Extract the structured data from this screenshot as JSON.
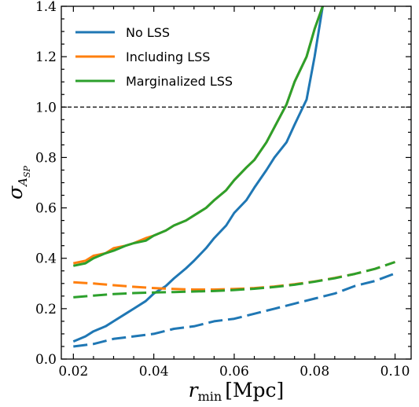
{
  "chart_data": {
    "type": "line",
    "xlabel_main": "r",
    "xlabel_sub": "min",
    "xlabel_unit": "[Mpc]",
    "ylabel_main": "σ",
    "ylabel_sub": "A",
    "ylabel_subsub": "SP",
    "xlim": [
      0.017,
      0.104
    ],
    "ylim": [
      0.0,
      1.4
    ],
    "xticks": [
      0.02,
      0.04,
      0.06,
      0.08,
      0.1
    ],
    "xtick_labels": [
      "0.02",
      "0.04",
      "0.06",
      "0.08",
      "0.10"
    ],
    "yticks": [
      0.0,
      0.2,
      0.4,
      0.6,
      0.8,
      1.0,
      1.2,
      1.4
    ],
    "ytick_labels": [
      "0.0",
      "0.2",
      "0.4",
      "0.6",
      "0.8",
      "1.0",
      "1.2",
      "1.4"
    ],
    "reference_line": {
      "y": 1.0,
      "style": "dashed",
      "color": "#000000"
    },
    "legend": {
      "placement": "top-left",
      "frame": false
    },
    "series": [
      {
        "name": "No LSS",
        "color": "#1f77b4",
        "style": "solid",
        "in_legend": true,
        "x": [
          0.02,
          0.023,
          0.025,
          0.028,
          0.03,
          0.033,
          0.035,
          0.038,
          0.04,
          0.043,
          0.045,
          0.048,
          0.05,
          0.053,
          0.055,
          0.058,
          0.06,
          0.063,
          0.065,
          0.068,
          0.07,
          0.073,
          0.075,
          0.078,
          0.08,
          0.082
        ],
        "y": [
          0.07,
          0.09,
          0.11,
          0.13,
          0.15,
          0.18,
          0.2,
          0.23,
          0.26,
          0.29,
          0.32,
          0.36,
          0.39,
          0.44,
          0.48,
          0.53,
          0.58,
          0.63,
          0.68,
          0.75,
          0.8,
          0.86,
          0.93,
          1.03,
          1.2,
          1.4
        ]
      },
      {
        "name": "Including LSS",
        "color": "#ff7f0e",
        "style": "solid",
        "in_legend": true,
        "x": [
          0.02,
          0.023,
          0.025,
          0.028,
          0.03,
          0.033,
          0.035,
          0.038,
          0.04,
          0.043,
          0.045,
          0.048,
          0.05,
          0.053,
          0.055,
          0.058,
          0.06,
          0.063,
          0.065,
          0.068,
          0.07,
          0.073,
          0.075,
          0.078,
          0.08,
          0.082
        ],
        "y": [
          0.38,
          0.39,
          0.41,
          0.42,
          0.44,
          0.45,
          0.46,
          0.48,
          0.49,
          0.51,
          0.53,
          0.55,
          0.57,
          0.6,
          0.63,
          0.67,
          0.71,
          0.76,
          0.79,
          0.86,
          0.92,
          1.01,
          1.1,
          1.2,
          1.31,
          1.4
        ]
      },
      {
        "name": "Marginalized LSS",
        "color": "#2ca02c",
        "style": "solid",
        "in_legend": true,
        "x": [
          0.02,
          0.023,
          0.025,
          0.028,
          0.03,
          0.033,
          0.035,
          0.038,
          0.04,
          0.043,
          0.045,
          0.048,
          0.05,
          0.053,
          0.055,
          0.058,
          0.06,
          0.063,
          0.065,
          0.068,
          0.07,
          0.073,
          0.075,
          0.078,
          0.08,
          0.082
        ],
        "y": [
          0.37,
          0.38,
          0.4,
          0.42,
          0.43,
          0.45,
          0.46,
          0.47,
          0.49,
          0.51,
          0.53,
          0.55,
          0.57,
          0.6,
          0.63,
          0.67,
          0.71,
          0.76,
          0.79,
          0.86,
          0.92,
          1.01,
          1.1,
          1.2,
          1.31,
          1.4
        ]
      },
      {
        "color": "#1f77b4",
        "style": "dashed",
        "in_legend": false,
        "x": [
          0.02,
          0.025,
          0.03,
          0.035,
          0.04,
          0.045,
          0.05,
          0.055,
          0.06,
          0.065,
          0.07,
          0.075,
          0.08,
          0.085,
          0.09,
          0.095,
          0.1
        ],
        "y": [
          0.05,
          0.06,
          0.08,
          0.09,
          0.1,
          0.12,
          0.13,
          0.15,
          0.16,
          0.18,
          0.2,
          0.22,
          0.24,
          0.26,
          0.29,
          0.31,
          0.34
        ]
      },
      {
        "color": "#ff7f0e",
        "style": "dashed",
        "in_legend": false,
        "x": [
          0.02,
          0.025,
          0.03,
          0.035,
          0.04,
          0.045,
          0.05,
          0.055,
          0.06,
          0.065,
          0.07,
          0.075,
          0.08,
          0.085,
          0.09,
          0.095,
          0.1
        ],
        "y": [
          0.305,
          0.3,
          0.293,
          0.287,
          0.282,
          0.278,
          0.276,
          0.276,
          0.278,
          0.282,
          0.288,
          0.297,
          0.308,
          0.322,
          0.338,
          0.358,
          0.385
        ]
      },
      {
        "color": "#2ca02c",
        "style": "dashed",
        "in_legend": false,
        "x": [
          0.02,
          0.025,
          0.03,
          0.035,
          0.04,
          0.045,
          0.05,
          0.055,
          0.06,
          0.065,
          0.07,
          0.075,
          0.08,
          0.085,
          0.09,
          0.095,
          0.1
        ],
        "y": [
          0.245,
          0.252,
          0.258,
          0.262,
          0.264,
          0.266,
          0.268,
          0.27,
          0.274,
          0.279,
          0.286,
          0.295,
          0.307,
          0.321,
          0.338,
          0.358,
          0.385
        ]
      }
    ]
  }
}
